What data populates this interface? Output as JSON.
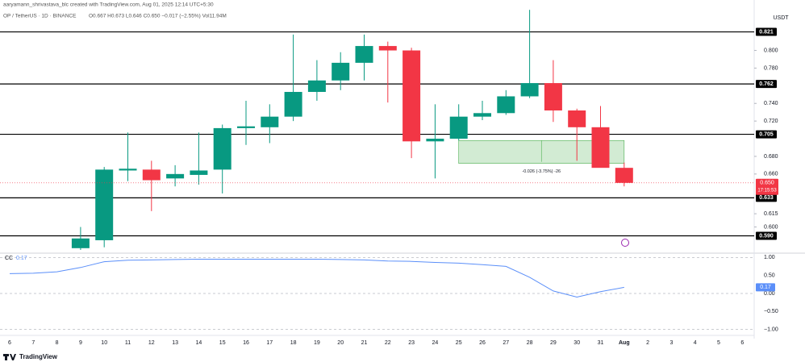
{
  "header": {
    "credit": "aaryamann_shrivastava_blc created with TradingView.com, Aug 01, 2025 12:14 UTC+5:30",
    "symbol": "OP / TetherUS · 1D · BINANCE",
    "ohlc": "O0.667 H0.673 L0.646 C0.650 −0.017 (−2.55%) Vol11.94M",
    "brand": "TradingView"
  },
  "chart_data": {
    "type": "candlestick",
    "currency": "USDT",
    "categories": [
      "6",
      "7",
      "8",
      "9",
      "10",
      "11",
      "12",
      "13",
      "14",
      "15",
      "16",
      "17",
      "18",
      "19",
      "20",
      "21",
      "22",
      "23",
      "24",
      "25",
      "26",
      "27",
      "28",
      "29",
      "30",
      "31",
      "Aug",
      "2",
      "3",
      "4",
      "5",
      "6"
    ],
    "open": [
      null,
      null,
      null,
      0.576,
      0.585,
      0.664,
      0.665,
      0.655,
      0.659,
      0.665,
      0.712,
      0.713,
      0.725,
      0.753,
      0.766,
      0.786,
      0.805,
      0.8,
      0.697,
      0.7,
      0.725,
      0.729,
      0.748,
      0.763,
      0.732,
      0.713,
      0.667,
      null,
      null,
      null,
      null,
      null
    ],
    "high": [
      null,
      null,
      null,
      0.6,
      0.668,
      0.707,
      0.675,
      0.67,
      0.707,
      0.716,
      0.743,
      0.739,
      0.818,
      0.789,
      0.798,
      0.818,
      0.81,
      0.803,
      0.739,
      0.739,
      0.743,
      0.755,
      0.846,
      0.789,
      0.734,
      0.737,
      0.673,
      null,
      null,
      null,
      null,
      null
    ],
    "low": [
      null,
      null,
      null,
      0.574,
      0.577,
      0.652,
      0.618,
      0.646,
      0.648,
      0.638,
      0.693,
      0.695,
      0.72,
      0.743,
      0.755,
      0.766,
      0.741,
      0.678,
      0.655,
      0.698,
      0.721,
      0.727,
      0.746,
      0.719,
      0.675,
      0.668,
      0.646,
      null,
      null,
      null,
      null,
      null
    ],
    "close": [
      null,
      null,
      null,
      0.587,
      0.665,
      0.666,
      0.653,
      0.66,
      0.664,
      0.712,
      0.714,
      0.725,
      0.753,
      0.766,
      0.786,
      0.805,
      0.8,
      0.697,
      0.7,
      0.725,
      0.729,
      0.748,
      0.763,
      0.732,
      0.713,
      0.667,
      0.65,
      null,
      null,
      null,
      null,
      null
    ],
    "up_color": "#089981",
    "down_color": "#f23645",
    "ylim": [
      0.574,
      0.848
    ],
    "yticks": [
      {
        "value": 0.8,
        "label": "0.800"
      },
      {
        "value": 0.78,
        "label": "0.780"
      },
      {
        "value": 0.74,
        "label": "0.740"
      },
      {
        "value": 0.72,
        "label": "0.720"
      },
      {
        "value": 0.68,
        "label": "0.680"
      },
      {
        "value": 0.66,
        "label": "0.660"
      },
      {
        "value": 0.615,
        "label": "0.615"
      },
      {
        "value": 0.6,
        "label": "0.600"
      }
    ],
    "levels": [
      {
        "value": 0.821,
        "label": "0.821"
      },
      {
        "value": 0.762,
        "label": "0.762"
      },
      {
        "value": 0.705,
        "label": "0.705"
      },
      {
        "value": 0.633,
        "label": "0.633"
      },
      {
        "value": 0.59,
        "label": "0.590"
      }
    ],
    "current_price": {
      "value": 0.65,
      "label": "0.650"
    },
    "countdown": "17:15:53",
    "measure": {
      "top": 0.698,
      "bottom": 0.672,
      "label": "-0.026 (-3.75%) -26"
    },
    "indicator": {
      "name": "CC",
      "color": "#5b8ff9",
      "values": [
        0.55,
        0.56,
        0.6,
        0.72,
        0.88,
        0.92,
        0.93,
        0.94,
        0.95,
        0.95,
        0.95,
        0.95,
        0.95,
        0.95,
        0.94,
        0.93,
        0.9,
        0.89,
        0.86,
        0.84,
        0.8,
        0.75,
        0.45,
        0.07,
        -0.1,
        0.05,
        0.17,
        null,
        null,
        null,
        null,
        null
      ],
      "ylim": [
        -1.05,
        1.05
      ],
      "yticks": [
        {
          "value": 1,
          "label": "1.00"
        },
        {
          "value": 0.5,
          "label": "0.50"
        },
        {
          "value": 0,
          "label": "0.00"
        },
        {
          "value": -0.5,
          "label": "−0.50"
        },
        {
          "value": -1,
          "label": "−1.00"
        }
      ]
    }
  }
}
